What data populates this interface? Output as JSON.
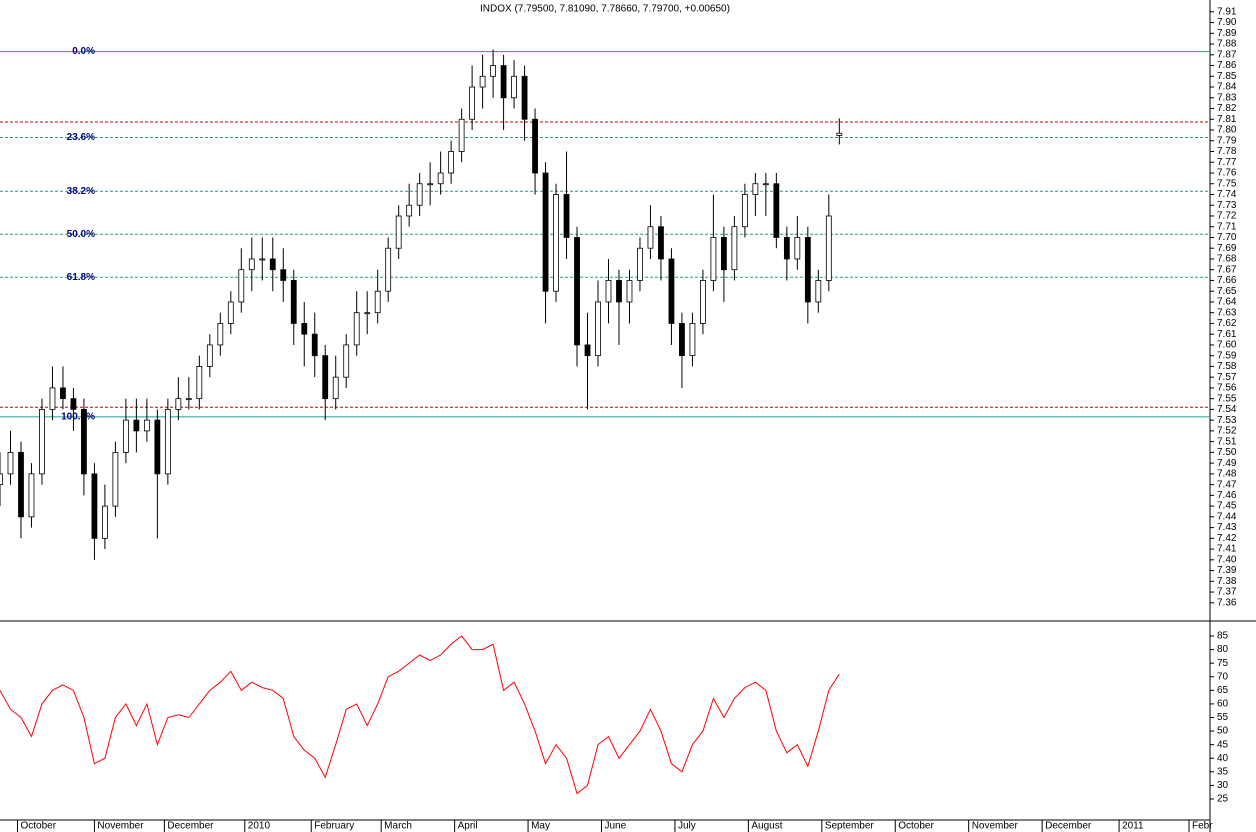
{
  "chart_data": [
    {
      "type": "candlestick",
      "title": "INDOX (7.79500, 7.81090, 7.78660, 7.79700, +0.00650)",
      "x": [
        0,
        3,
        6,
        9,
        12,
        15,
        18,
        21,
        24,
        27,
        30,
        33,
        36,
        39,
        42,
        45,
        48,
        51,
        54,
        57,
        60,
        63,
        66,
        69,
        72,
        75,
        78,
        81,
        84,
        87,
        90,
        93,
        96,
        99,
        102,
        105,
        108,
        111,
        114,
        117,
        120,
        123,
        126,
        129,
        132,
        135,
        138,
        141,
        144,
        147,
        150,
        153,
        156,
        159,
        162,
        165,
        168,
        171,
        174,
        177,
        180,
        183,
        186,
        189,
        192,
        195,
        198,
        201,
        204,
        207,
        210,
        213,
        216,
        219,
        222,
        225,
        228,
        231,
        234,
        237,
        240
      ],
      "candles": [
        [
          7.47,
          7.5,
          7.45,
          7.48
        ],
        [
          7.48,
          7.52,
          7.47,
          7.5
        ],
        [
          7.5,
          7.51,
          7.42,
          7.44
        ],
        [
          7.44,
          7.49,
          7.43,
          7.48
        ],
        [
          7.48,
          7.55,
          7.47,
          7.54
        ],
        [
          7.54,
          7.58,
          7.53,
          7.56
        ],
        [
          7.56,
          7.58,
          7.54,
          7.55
        ],
        [
          7.55,
          7.56,
          7.52,
          7.54
        ],
        [
          7.54,
          7.55,
          7.46,
          7.48
        ],
        [
          7.48,
          7.49,
          7.4,
          7.42
        ],
        [
          7.42,
          7.47,
          7.41,
          7.45
        ],
        [
          7.45,
          7.51,
          7.44,
          7.5
        ],
        [
          7.5,
          7.55,
          7.49,
          7.53
        ],
        [
          7.53,
          7.55,
          7.5,
          7.52
        ],
        [
          7.52,
          7.55,
          7.51,
          7.53
        ],
        [
          7.53,
          7.54,
          7.42,
          7.48
        ],
        [
          7.48,
          7.55,
          7.47,
          7.54
        ],
        [
          7.54,
          7.57,
          7.53,
          7.55
        ],
        [
          7.55,
          7.57,
          7.54,
          7.55
        ],
        [
          7.55,
          7.59,
          7.54,
          7.58
        ],
        [
          7.58,
          7.61,
          7.57,
          7.6
        ],
        [
          7.6,
          7.63,
          7.59,
          7.62
        ],
        [
          7.62,
          7.65,
          7.61,
          7.64
        ],
        [
          7.64,
          7.69,
          7.63,
          7.67
        ],
        [
          7.67,
          7.7,
          7.65,
          7.68
        ],
        [
          7.68,
          7.7,
          7.66,
          7.68
        ],
        [
          7.68,
          7.7,
          7.65,
          7.67
        ],
        [
          7.67,
          7.69,
          7.64,
          7.66
        ],
        [
          7.66,
          7.67,
          7.6,
          7.62
        ],
        [
          7.62,
          7.64,
          7.58,
          7.61
        ],
        [
          7.61,
          7.63,
          7.57,
          7.59
        ],
        [
          7.59,
          7.6,
          7.53,
          7.55
        ],
        [
          7.55,
          7.59,
          7.54,
          7.57
        ],
        [
          7.57,
          7.61,
          7.56,
          7.6
        ],
        [
          7.6,
          7.65,
          7.59,
          7.63
        ],
        [
          7.63,
          7.65,
          7.61,
          7.63
        ],
        [
          7.63,
          7.67,
          7.62,
          7.65
        ],
        [
          7.65,
          7.7,
          7.64,
          7.69
        ],
        [
          7.69,
          7.73,
          7.68,
          7.72
        ],
        [
          7.72,
          7.75,
          7.71,
          7.73
        ],
        [
          7.73,
          7.76,
          7.72,
          7.75
        ],
        [
          7.75,
          7.77,
          7.73,
          7.75
        ],
        [
          7.75,
          7.78,
          7.74,
          7.76
        ],
        [
          7.76,
          7.79,
          7.75,
          7.78
        ],
        [
          7.78,
          7.82,
          7.77,
          7.81
        ],
        [
          7.81,
          7.86,
          7.8,
          7.84
        ],
        [
          7.84,
          7.87,
          7.82,
          7.85
        ],
        [
          7.85,
          7.875,
          7.83,
          7.86
        ],
        [
          7.86,
          7.87,
          7.8,
          7.83
        ],
        [
          7.83,
          7.865,
          7.82,
          7.85
        ],
        [
          7.85,
          7.86,
          7.79,
          7.81
        ],
        [
          7.81,
          7.82,
          7.74,
          7.76
        ],
        [
          7.76,
          7.77,
          7.62,
          7.65
        ],
        [
          7.65,
          7.75,
          7.64,
          7.74
        ],
        [
          7.74,
          7.78,
          7.68,
          7.7
        ],
        [
          7.7,
          7.71,
          7.58,
          7.6
        ],
        [
          7.6,
          7.63,
          7.54,
          7.59
        ],
        [
          7.59,
          7.66,
          7.58,
          7.64
        ],
        [
          7.64,
          7.68,
          7.62,
          7.66
        ],
        [
          7.66,
          7.67,
          7.6,
          7.64
        ],
        [
          7.64,
          7.67,
          7.62,
          7.66
        ],
        [
          7.66,
          7.7,
          7.65,
          7.69
        ],
        [
          7.69,
          7.73,
          7.68,
          7.71
        ],
        [
          7.71,
          7.72,
          7.66,
          7.68
        ],
        [
          7.68,
          7.69,
          7.6,
          7.62
        ],
        [
          7.62,
          7.63,
          7.56,
          7.59
        ],
        [
          7.59,
          7.63,
          7.58,
          7.62
        ],
        [
          7.62,
          7.67,
          7.61,
          7.66
        ],
        [
          7.66,
          7.74,
          7.65,
          7.7
        ],
        [
          7.7,
          7.71,
          7.64,
          7.67
        ],
        [
          7.67,
          7.72,
          7.66,
          7.71
        ],
        [
          7.71,
          7.75,
          7.7,
          7.74
        ],
        [
          7.74,
          7.76,
          7.72,
          7.75
        ],
        [
          7.75,
          7.76,
          7.72,
          7.75
        ],
        [
          7.75,
          7.76,
          7.69,
          7.7
        ],
        [
          7.7,
          7.71,
          7.66,
          7.68
        ],
        [
          7.68,
          7.72,
          7.67,
          7.7
        ],
        [
          7.7,
          7.71,
          7.62,
          7.64
        ],
        [
          7.64,
          7.67,
          7.63,
          7.66
        ],
        [
          7.66,
          7.74,
          7.65,
          7.72
        ],
        [
          7.795,
          7.8109,
          7.7866,
          7.797
        ]
      ],
      "up_color": "#ffffff",
      "down_color": "#000000",
      "fib_color": "#1f9a8a",
      "fib_levels": [
        {
          "label": "0.0%",
          "value": 7.873,
          "style": "solid"
        },
        {
          "label": "23.6%",
          "value": 7.793,
          "style": "dashed"
        },
        {
          "label": "38.2%",
          "value": 7.743,
          "style": "dashed"
        },
        {
          "label": "50.0%",
          "value": 7.703,
          "style": "dashed"
        },
        {
          "label": "61.8%",
          "value": 7.663,
          "style": "dashed"
        },
        {
          "label": "100.0%",
          "value": 7.533,
          "style": "solid"
        }
      ],
      "markers": [
        {
          "value": 7.8075,
          "color": "#cc0000"
        },
        {
          "value": 7.542,
          "color": "#cc0000"
        }
      ],
      "ylim": [
        7.344,
        7.921
      ],
      "yticks": [
        7.36,
        7.37,
        7.38,
        7.39,
        {
          "value": 7.4,
          "label": "7.40"
        },
        7.41,
        7.42,
        7.43,
        7.44,
        7.45,
        7.46,
        7.47,
        7.48,
        7.49,
        {
          "value": 7.5,
          "label": "7.50"
        },
        7.51,
        7.52,
        7.53,
        7.54,
        7.55,
        7.56,
        7.57,
        7.58,
        7.59,
        {
          "value": 7.6,
          "label": "7.60"
        },
        7.61,
        7.62,
        7.63,
        7.64,
        7.65,
        7.66,
        7.67,
        7.68,
        7.69,
        {
          "value": 7.7,
          "label": "7.70"
        },
        7.71,
        7.72,
        7.73,
        7.74,
        7.75,
        7.76,
        7.77,
        7.78,
        7.79,
        {
          "value": 7.8,
          "label": "7.80"
        },
        7.81,
        7.82,
        7.83,
        7.84,
        7.85,
        7.86,
        7.87,
        7.88,
        7.89,
        {
          "value": 7.9,
          "label": "7.90"
        },
        7.91
      ]
    },
    {
      "type": "line",
      "color": "#ff0000",
      "values": [
        65,
        58,
        55,
        48,
        60,
        65,
        67,
        65,
        55,
        38,
        40,
        55,
        60,
        52,
        60,
        45,
        55,
        56,
        55,
        60,
        65,
        68,
        72,
        65,
        68,
        66,
        65,
        62,
        48,
        43,
        40,
        33,
        45,
        58,
        60,
        52,
        60,
        70,
        72,
        75,
        78,
        76,
        78,
        82,
        85,
        80,
        80,
        82,
        65,
        68,
        60,
        50,
        38,
        45,
        40,
        27,
        30,
        45,
        48,
        40,
        45,
        50,
        58,
        50,
        38,
        35,
        45,
        50,
        62,
        55,
        62,
        66,
        68,
        65,
        50,
        42,
        45,
        37,
        50,
        65,
        71
      ],
      "ylim": [
        17.27,
        90.15
      ],
      "yticks": [
        25,
        30,
        35,
        40,
        45,
        50,
        55,
        60,
        65,
        70,
        75,
        80,
        85
      ],
      "xlim": [
        0,
        346
      ],
      "xticks": [
        {
          "value": 5,
          "label": "October"
        },
        {
          "value": 27,
          "label": "November"
        },
        {
          "value": 47,
          "label": "December"
        },
        {
          "value": 70,
          "label": "2010"
        },
        {
          "value": 89,
          "label": "February"
        },
        {
          "value": 109,
          "label": "March"
        },
        {
          "value": 130,
          "label": "April"
        },
        {
          "value": 151,
          "label": "May"
        },
        {
          "value": 172,
          "label": "June"
        },
        {
          "value": 193,
          "label": "July"
        },
        {
          "value": 214,
          "label": "August"
        },
        {
          "value": 235,
          "label": "September"
        },
        {
          "value": 256,
          "label": "October"
        },
        {
          "value": 277,
          "label": "November"
        },
        {
          "value": 298,
          "label": "December"
        },
        {
          "value": 320,
          "label": "2011"
        },
        {
          "value": 340,
          "label": "Febr"
        }
      ]
    }
  ]
}
